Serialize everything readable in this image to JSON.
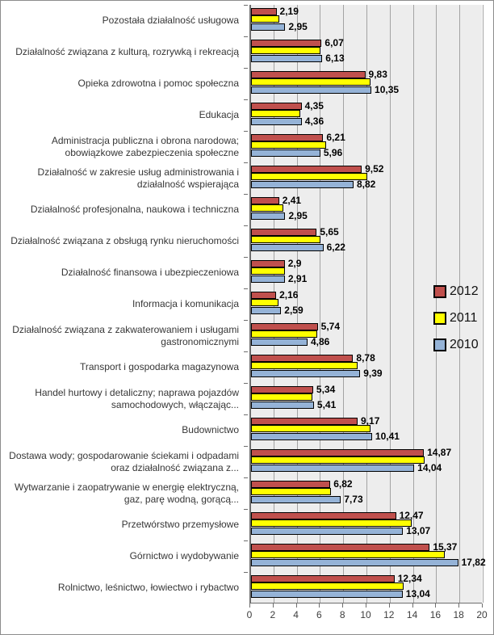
{
  "chart_data": {
    "type": "bar",
    "orientation": "horizontal",
    "categories": [
      "Pozostała działalność usługowa",
      "Działalność związana z kulturą, rozrywką i rekreacją",
      "Opieka zdrowotna i pomoc społeczna",
      "Edukacja",
      "Administracja publiczna i obrona narodowa; obowiązkowe zabezpieczenia społeczne",
      "Działalność w zakresie usług administrowania i działalność wspierająca",
      "Działalność profesjonalna, naukowa i techniczna",
      "Działalność związana z obsługą rynku nieruchomości",
      "Działalność finansowa i ubezpieczeniowa",
      "Informacja i komunikacja",
      "Działalność związana z zakwaterowaniem i usługami gastronomicznymi",
      "Transport i gospodarka magazynowa",
      "Handel hurtowy i detaliczny; naprawa pojazdów samochodowych, włączając...",
      "Budownictwo",
      "Dostawa wody; gospodarowanie ściekami i odpadami oraz działalność związana z...",
      "Wytwarzanie i zaopatrywanie w energię elektryczną, gaz, parę wodną, gorącą...",
      "Przetwórstwo przemysłowe",
      "Górnictwo i wydobywanie",
      "Rolnictwo, leśnictwo, łowiectwo i rybactwo"
    ],
    "series": [
      {
        "name": "2012",
        "color": "#C0504D",
        "values": [
          2.19,
          6.07,
          9.83,
          4.35,
          6.21,
          9.52,
          2.41,
          5.65,
          2.9,
          2.16,
          5.74,
          8.78,
          5.34,
          9.17,
          14.87,
          6.82,
          12.47,
          15.37,
          12.34
        ],
        "labels": [
          "2,19",
          "6,07",
          "9,83",
          "4,35",
          "6,21",
          "9,52",
          "2,41",
          "5,65",
          "2,9",
          "2,16",
          "5,74",
          "8,78",
          "5,34",
          "9,17",
          "14,87",
          "6,82",
          "12,47",
          "15,37",
          "12,34"
        ]
      },
      {
        "name": "2011",
        "color": "#FFFF00",
        "values": [
          2.45,
          6.0,
          10.3,
          4.25,
          6.45,
          10.0,
          2.8,
          6.0,
          2.9,
          2.35,
          5.7,
          9.2,
          5.3,
          10.3,
          14.9,
          6.85,
          13.85,
          16.7,
          13.15
        ],
        "labels": null
      },
      {
        "name": "2010",
        "color": "#95B3D7",
        "values": [
          2.95,
          6.13,
          10.35,
          4.36,
          5.96,
          8.82,
          2.95,
          6.22,
          2.91,
          2.59,
          4.86,
          9.39,
          5.41,
          10.41,
          14.04,
          7.73,
          13.07,
          17.82,
          13.04
        ],
        "labels": [
          "2,95",
          "6,13",
          "10,35",
          "4,36",
          "5,96",
          "8,82",
          "2,95",
          "6,22",
          "2,91",
          "2,59",
          "4,86",
          "9,39",
          "5,41",
          "10,41",
          "14,04",
          "7,73",
          "13,07",
          "17,82",
          "13,04"
        ]
      }
    ],
    "xlim": [
      0,
      20
    ],
    "x_ticks": [
      "0",
      "2",
      "4",
      "6",
      "8",
      "10",
      "12",
      "14",
      "16",
      "18",
      "20"
    ],
    "grid": "vertical",
    "legend_position": "right-middle",
    "plot_bg_color": "#EDEDED",
    "gridline_color": "#A3A3A3",
    "decimal_separator": ","
  }
}
